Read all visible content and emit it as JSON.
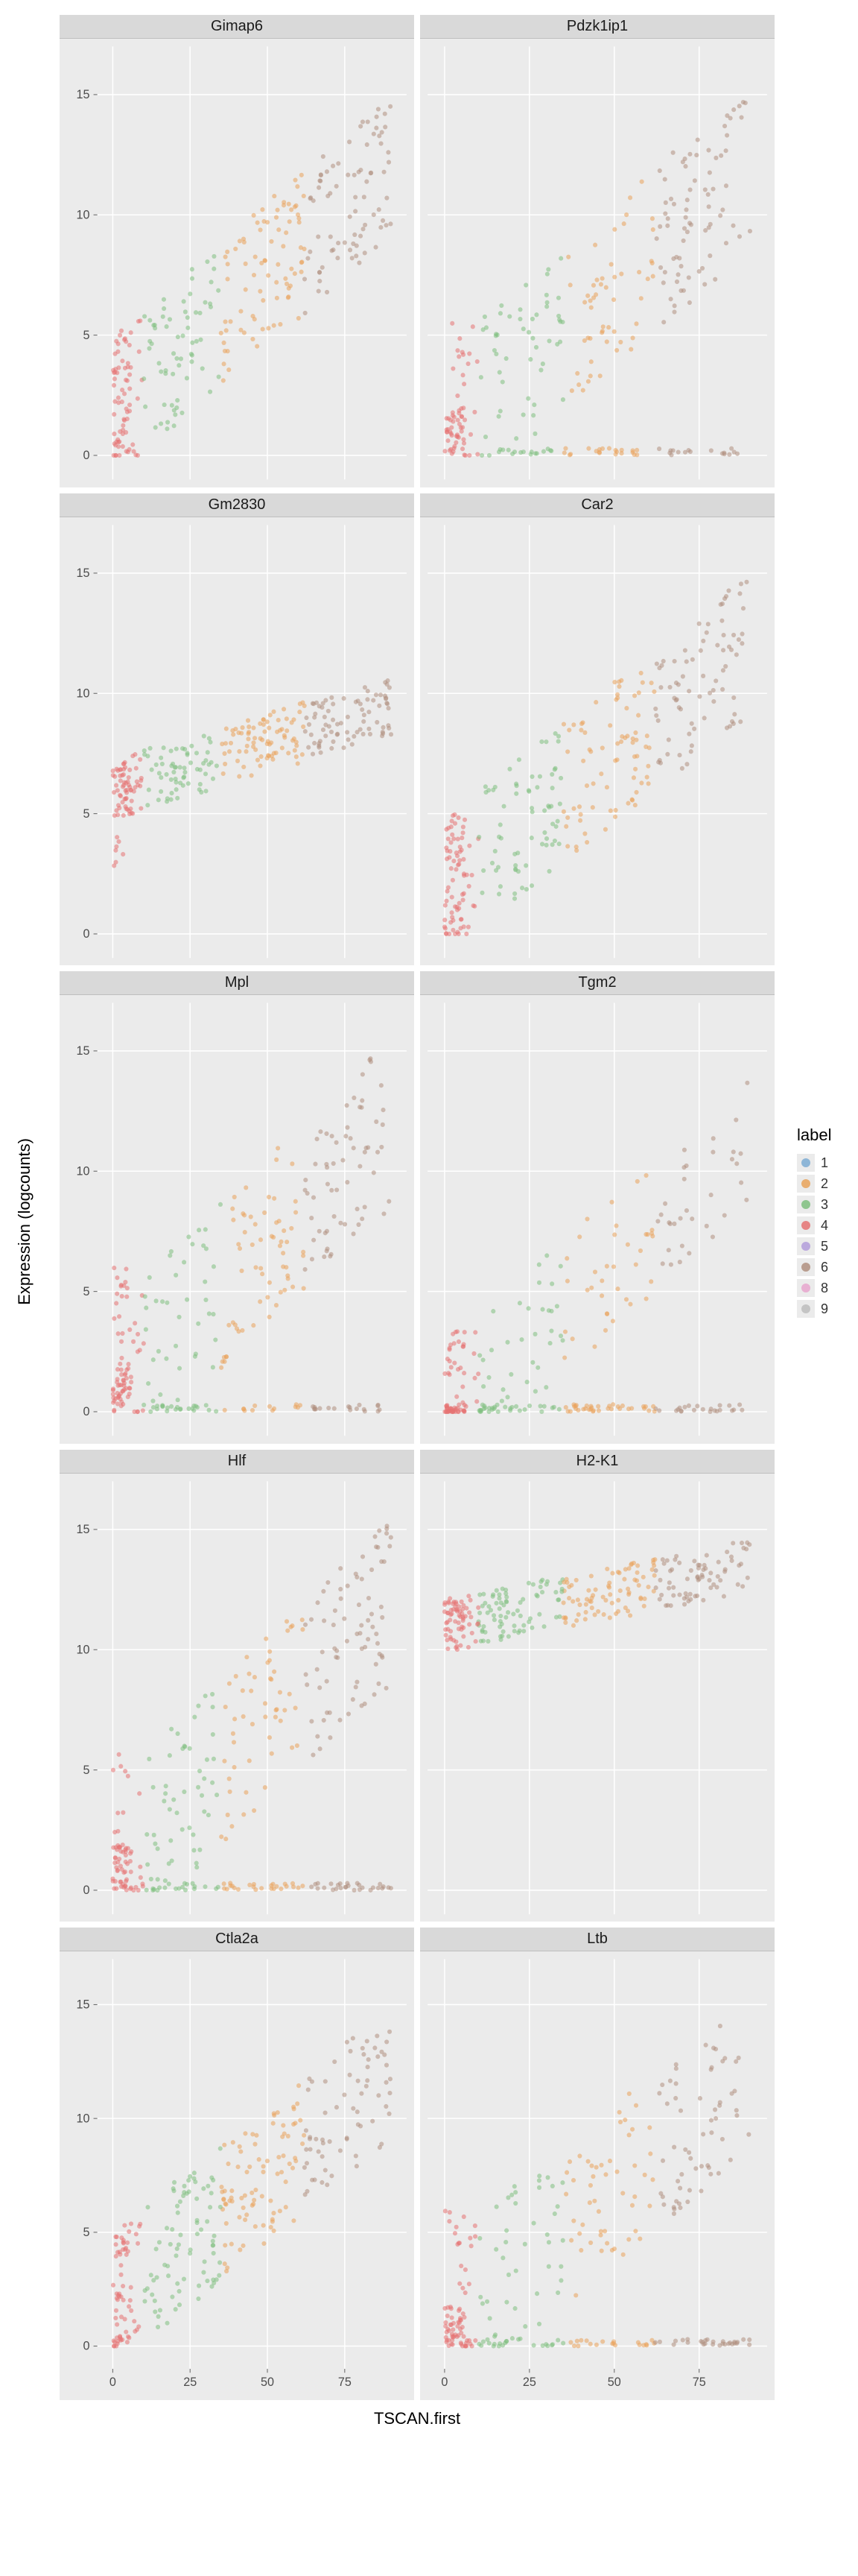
{
  "ylabel": "Expression (logcounts)",
  "xlabel": "TSCAN.first",
  "xaxis": {
    "lim": [
      -5,
      95
    ],
    "ticks": [
      0,
      25,
      50,
      75
    ]
  },
  "yaxis": {
    "lim": [
      -1,
      17
    ],
    "ticks": [
      0,
      5,
      10,
      15
    ]
  },
  "background_color": "#ebebeb",
  "grid_color": "#ffffff",
  "strip_background": "#d9d9d9",
  "point": {
    "size": 6,
    "opacity": 0.55
  },
  "legend": {
    "title": "label",
    "items": [
      {
        "key": "1",
        "color": "#7eadd3"
      },
      {
        "key": "2",
        "color": "#e9a35b"
      },
      {
        "key": "3",
        "color": "#7fc07f"
      },
      {
        "key": "4",
        "color": "#e57373"
      },
      {
        "key": "5",
        "color": "#b39ddb"
      },
      {
        "key": "6",
        "color": "#b08f7f"
      },
      {
        "key": "8",
        "color": "#e8a6ce"
      },
      {
        "key": "9",
        "color": "#bdbdbd"
      }
    ]
  },
  "color_xranges": {
    "4": [
      0,
      10
    ],
    "3": [
      10,
      35
    ],
    "2": [
      35,
      62
    ],
    "6": [
      62,
      90
    ]
  },
  "panels": [
    {
      "title": "Gimap6",
      "pattern": "rise_full",
      "n": 300
    },
    {
      "title": "Pdzk1ip1",
      "pattern": "rise_zero",
      "n": 300
    },
    {
      "title": "Gm2830",
      "pattern": "band",
      "n": 300
    },
    {
      "title": "Car2",
      "pattern": "rise_full",
      "n": 300
    },
    {
      "title": "Mpl",
      "pattern": "rise_zero",
      "n": 300
    },
    {
      "title": "Tgm2",
      "pattern": "sparse_rise",
      "n": 260
    },
    {
      "title": "Hlf",
      "pattern": "rise_zero",
      "n": 320
    },
    {
      "title": "H2-K1",
      "pattern": "high_band",
      "n": 300
    },
    {
      "title": "Ctla2a",
      "pattern": "rise_full",
      "n": 300
    },
    {
      "title": "Ltb",
      "pattern": "rise_zero",
      "n": 300
    }
  ]
}
